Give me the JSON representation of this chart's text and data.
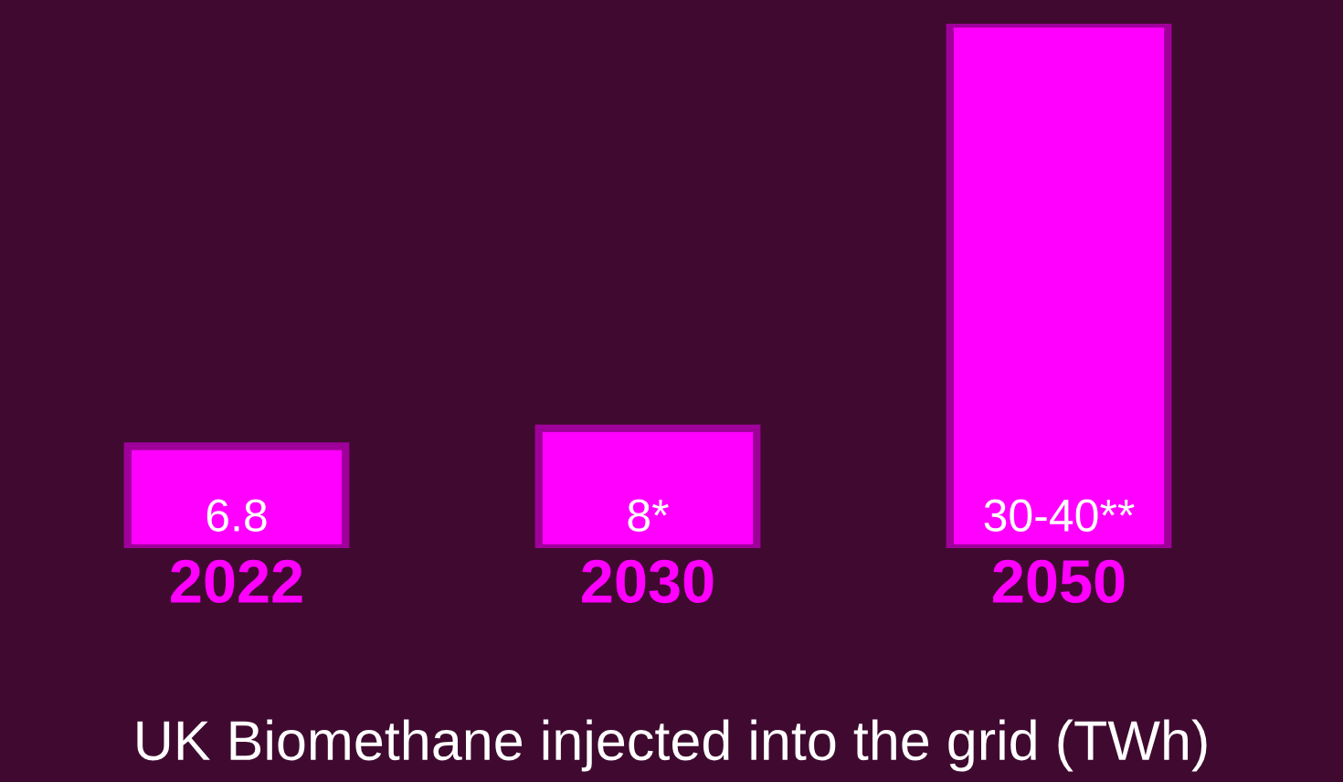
{
  "chart_data": {
    "type": "bar",
    "title": "UK Biomethane injected into the grid (TWh)",
    "categories": [
      "2022",
      "2030",
      "2050"
    ],
    "values": [
      6.8,
      8,
      35
    ],
    "value_labels": [
      "6.8",
      "8*",
      "30-40**"
    ],
    "color": "#ff00ff",
    "grid": false,
    "legend": false
  }
}
